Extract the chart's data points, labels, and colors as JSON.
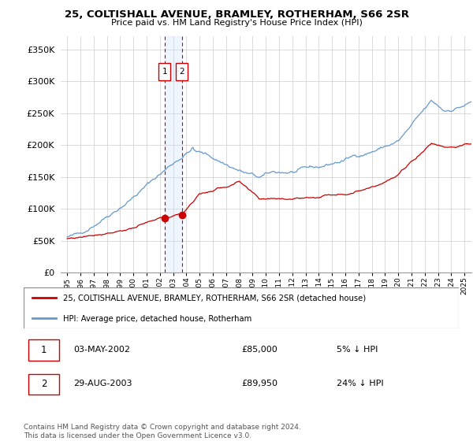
{
  "title": "25, COLTISHALL AVENUE, BRAMLEY, ROTHERHAM, S66 2SR",
  "subtitle": "Price paid vs. HM Land Registry's House Price Index (HPI)",
  "ylabel_ticks": [
    "£0",
    "£50K",
    "£100K",
    "£150K",
    "£200K",
    "£250K",
    "£300K",
    "£350K"
  ],
  "ytick_vals": [
    0,
    50000,
    100000,
    150000,
    200000,
    250000,
    300000,
    350000
  ],
  "ylim": [
    0,
    370000
  ],
  "xlim_start": 1994.5,
  "xlim_end": 2025.5,
  "transaction1": {
    "year": 2002.35,
    "price": 85000,
    "label": "1",
    "date": "03-MAY-2002",
    "pct": "5%"
  },
  "transaction2": {
    "year": 2003.66,
    "price": 89950,
    "label": "2",
    "date": "29-AUG-2003",
    "pct": "24%"
  },
  "legend_line1": "25, COLTISHALL AVENUE, BRAMLEY, ROTHERHAM, S66 2SR (detached house)",
  "legend_line2": "HPI: Average price, detached house, Rotherham",
  "footer": "Contains HM Land Registry data © Crown copyright and database right 2024.\nThis data is licensed under the Open Government Licence v3.0.",
  "line_color_red": "#cc0000",
  "line_color_blue": "#6699cc",
  "marker_box_color": "#cc0000",
  "shaded_color": "#cce0ff",
  "grid_color": "#cccccc",
  "bg_color": "#ffffff"
}
